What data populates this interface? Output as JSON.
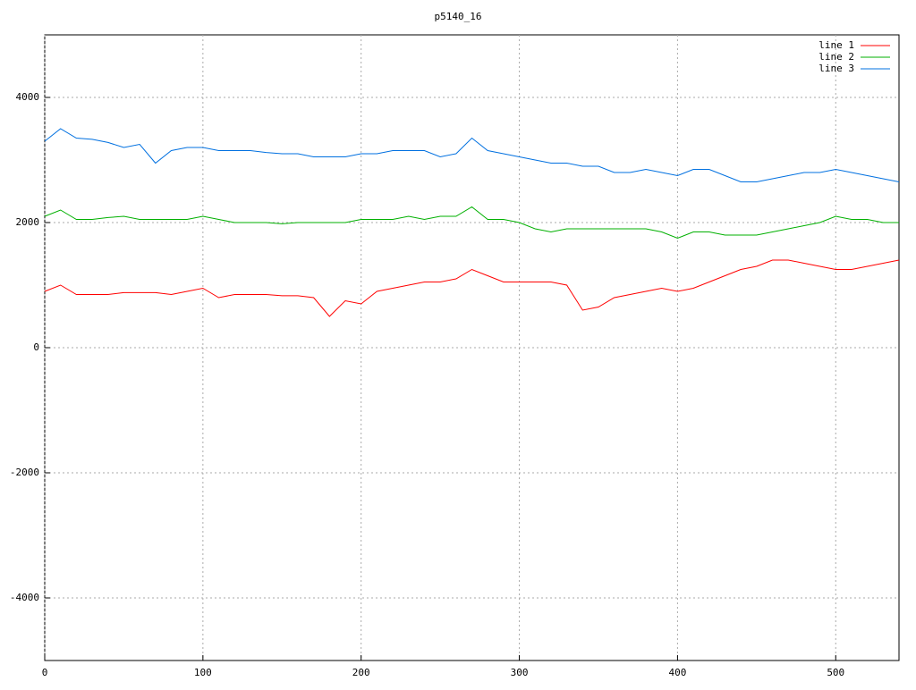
{
  "chart_data": {
    "type": "line",
    "title": "p5140_16",
    "x": [
      0,
      10,
      20,
      30,
      40,
      50,
      60,
      70,
      80,
      90,
      100,
      110,
      120,
      130,
      140,
      150,
      160,
      170,
      180,
      190,
      200,
      210,
      220,
      230,
      240,
      250,
      260,
      270,
      280,
      290,
      300,
      310,
      320,
      330,
      340,
      350,
      360,
      370,
      380,
      390,
      400,
      410,
      420,
      430,
      440,
      450,
      460,
      470,
      480,
      490,
      500,
      510,
      520,
      530,
      540
    ],
    "series": [
      {
        "name": "line 1",
        "color": "#ff0000",
        "values": [
          900,
          1000,
          850,
          850,
          850,
          880,
          880,
          880,
          850,
          900,
          950,
          800,
          850,
          850,
          850,
          830,
          830,
          800,
          500,
          750,
          700,
          900,
          950,
          1000,
          1050,
          1050,
          1100,
          1250,
          1150,
          1050,
          1050,
          1050,
          1050,
          1000,
          600,
          650,
          800,
          850,
          900,
          950,
          900,
          950,
          1050,
          1150,
          1250,
          1300,
          1400,
          1400,
          1350,
          1300,
          1250,
          1250,
          1300,
          1350,
          1400
        ]
      },
      {
        "name": "line 2",
        "color": "#00b000",
        "values": [
          2100,
          2200,
          2050,
          2050,
          2080,
          2100,
          2050,
          2050,
          2050,
          2050,
          2100,
          2050,
          2000,
          2000,
          2000,
          1980,
          2000,
          2000,
          2000,
          2000,
          2050,
          2050,
          2050,
          2100,
          2050,
          2100,
          2100,
          2250,
          2050,
          2050,
          2000,
          1900,
          1850,
          1900,
          1900,
          1900,
          1900,
          1900,
          1900,
          1850,
          1750,
          1850,
          1850,
          1800,
          1800,
          1800,
          1850,
          1900,
          1950,
          2000,
          2100,
          2050,
          2050,
          2000,
          2000
        ]
      },
      {
        "name": "line 3",
        "color": "#0070e0",
        "values": [
          3300,
          3500,
          3350,
          3330,
          3280,
          3200,
          3250,
          2950,
          3150,
          3200,
          3200,
          3150,
          3150,
          3150,
          3120,
          3100,
          3100,
          3050,
          3050,
          3050,
          3100,
          3100,
          3150,
          3150,
          3150,
          3050,
          3100,
          3350,
          3150,
          3100,
          3050,
          3000,
          2950,
          2950,
          2900,
          2900,
          2800,
          2800,
          2850,
          2800,
          2750,
          2850,
          2850,
          2750,
          2650,
          2650,
          2700,
          2750,
          2800,
          2800,
          2850,
          2800,
          2750,
          2700,
          2650
        ]
      }
    ],
    "xlim": [
      0,
      540
    ],
    "xticks": [
      0,
      100,
      200,
      300,
      400,
      500
    ],
    "ylim": [
      -5000,
      5000
    ],
    "yticks": [
      -4000,
      -2000,
      0,
      2000,
      4000
    ],
    "grid": true,
    "legend": "top-right"
  }
}
